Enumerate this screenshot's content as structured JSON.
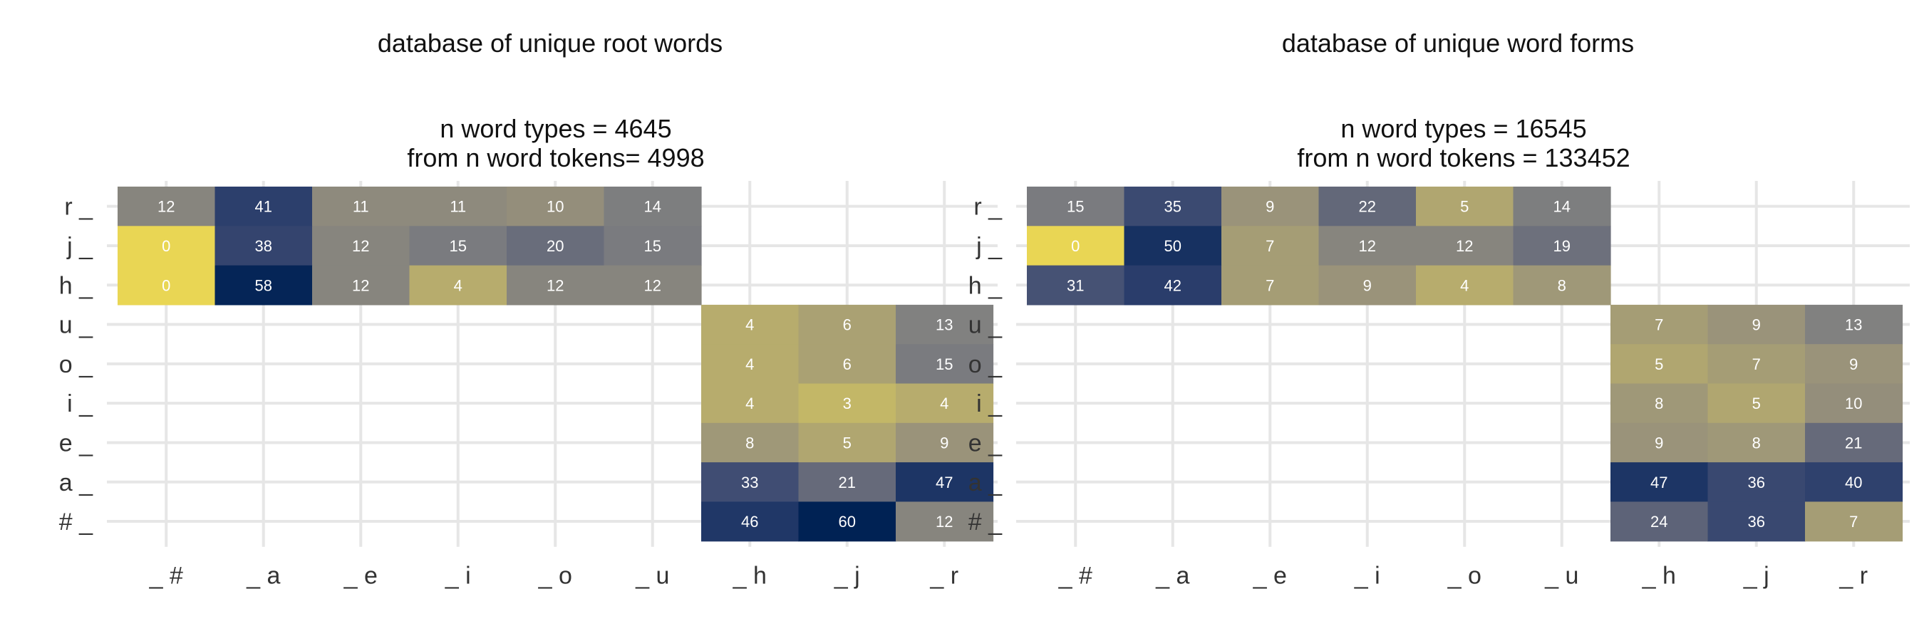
{
  "chart_data": [
    {
      "type": "heatmap",
      "title": "database of unique root words",
      "subtitle_lines": [
        "n word types = 4645",
        "from n word tokens= 4998"
      ],
      "x_categories": [
        "_#",
        "_a",
        "_e",
        "_i",
        "_o",
        "_u",
        "_h",
        "_j",
        "_r"
      ],
      "y_categories": [
        "r_",
        "j_",
        "h_",
        "u_",
        "o_",
        "i_",
        "e_",
        "a_",
        "#_"
      ],
      "cells": [
        {
          "y": "r_",
          "x": "_#",
          "value": 12
        },
        {
          "y": "r_",
          "x": "_a",
          "value": 41
        },
        {
          "y": "r_",
          "x": "_e",
          "value": 11
        },
        {
          "y": "r_",
          "x": "_i",
          "value": 11
        },
        {
          "y": "r_",
          "x": "_o",
          "value": 10
        },
        {
          "y": "r_",
          "x": "_u",
          "value": 14
        },
        {
          "y": "j_",
          "x": "_#",
          "value": 0
        },
        {
          "y": "j_",
          "x": "_a",
          "value": 38
        },
        {
          "y": "j_",
          "x": "_e",
          "value": 12
        },
        {
          "y": "j_",
          "x": "_i",
          "value": 15
        },
        {
          "y": "j_",
          "x": "_o",
          "value": 20
        },
        {
          "y": "j_",
          "x": "_u",
          "value": 15
        },
        {
          "y": "h_",
          "x": "_#",
          "value": 0
        },
        {
          "y": "h_",
          "x": "_a",
          "value": 58
        },
        {
          "y": "h_",
          "x": "_e",
          "value": 12
        },
        {
          "y": "h_",
          "x": "_i",
          "value": 4
        },
        {
          "y": "h_",
          "x": "_o",
          "value": 12
        },
        {
          "y": "h_",
          "x": "_u",
          "value": 12
        },
        {
          "y": "u_",
          "x": "_h",
          "value": 4
        },
        {
          "y": "u_",
          "x": "_j",
          "value": 6
        },
        {
          "y": "u_",
          "x": "_r",
          "value": 13
        },
        {
          "y": "o_",
          "x": "_h",
          "value": 4
        },
        {
          "y": "o_",
          "x": "_j",
          "value": 6
        },
        {
          "y": "o_",
          "x": "_r",
          "value": 15
        },
        {
          "y": "i_",
          "x": "_h",
          "value": 4
        },
        {
          "y": "i_",
          "x": "_j",
          "value": 3
        },
        {
          "y": "i_",
          "x": "_r",
          "value": 4
        },
        {
          "y": "e_",
          "x": "_h",
          "value": 8
        },
        {
          "y": "e_",
          "x": "_j",
          "value": 5
        },
        {
          "y": "e_",
          "x": "_r",
          "value": 9
        },
        {
          "y": "a_",
          "x": "_h",
          "value": 33
        },
        {
          "y": "a_",
          "x": "_j",
          "value": 21
        },
        {
          "y": "a_",
          "x": "_r",
          "value": 47
        },
        {
          "y": "#_",
          "x": "_h",
          "value": 46
        },
        {
          "y": "#_",
          "x": "_j",
          "value": 60
        },
        {
          "y": "#_",
          "x": "_r",
          "value": 12
        }
      ],
      "color_scale": "cividis (low = yellow, high = dark navy)",
      "grid": true,
      "legend": "none"
    },
    {
      "type": "heatmap",
      "title": "database of unique word forms",
      "subtitle_lines": [
        "n word types = 16545",
        "from n word tokens = 133452"
      ],
      "x_categories": [
        "_#",
        "_a",
        "_e",
        "_i",
        "_o",
        "_u",
        "_h",
        "_j",
        "_r"
      ],
      "y_categories": [
        "r_",
        "j_",
        "h_",
        "u_",
        "o_",
        "i_",
        "e_",
        "a_",
        "#_"
      ],
      "cells": [
        {
          "y": "r_",
          "x": "_#",
          "value": 15
        },
        {
          "y": "r_",
          "x": "_a",
          "value": 35
        },
        {
          "y": "r_",
          "x": "_e",
          "value": 9
        },
        {
          "y": "r_",
          "x": "_i",
          "value": 22
        },
        {
          "y": "r_",
          "x": "_o",
          "value": 5
        },
        {
          "y": "r_",
          "x": "_u",
          "value": 14
        },
        {
          "y": "j_",
          "x": "_#",
          "value": 0
        },
        {
          "y": "j_",
          "x": "_a",
          "value": 50
        },
        {
          "y": "j_",
          "x": "_e",
          "value": 7
        },
        {
          "y": "j_",
          "x": "_i",
          "value": 12
        },
        {
          "y": "j_",
          "x": "_o",
          "value": 12
        },
        {
          "y": "j_",
          "x": "_u",
          "value": 19
        },
        {
          "y": "h_",
          "x": "_#",
          "value": 31
        },
        {
          "y": "h_",
          "x": "_a",
          "value": 42
        },
        {
          "y": "h_",
          "x": "_e",
          "value": 7
        },
        {
          "y": "h_",
          "x": "_i",
          "value": 9
        },
        {
          "y": "h_",
          "x": "_o",
          "value": 4
        },
        {
          "y": "h_",
          "x": "_u",
          "value": 8
        },
        {
          "y": "u_",
          "x": "_h",
          "value": 7
        },
        {
          "y": "u_",
          "x": "_j",
          "value": 9
        },
        {
          "y": "u_",
          "x": "_r",
          "value": 13
        },
        {
          "y": "o_",
          "x": "_h",
          "value": 5
        },
        {
          "y": "o_",
          "x": "_j",
          "value": 7
        },
        {
          "y": "o_",
          "x": "_r",
          "value": 9
        },
        {
          "y": "i_",
          "x": "_h",
          "value": 8
        },
        {
          "y": "i_",
          "x": "_j",
          "value": 5
        },
        {
          "y": "i_",
          "x": "_r",
          "value": 10
        },
        {
          "y": "e_",
          "x": "_h",
          "value": 9
        },
        {
          "y": "e_",
          "x": "_j",
          "value": 8
        },
        {
          "y": "e_",
          "x": "_r",
          "value": 21
        },
        {
          "y": "a_",
          "x": "_h",
          "value": 47
        },
        {
          "y": "a_",
          "x": "_j",
          "value": 36
        },
        {
          "y": "a_",
          "x": "_r",
          "value": 40
        },
        {
          "y": "#_",
          "x": "_h",
          "value": 24
        },
        {
          "y": "#_",
          "x": "_j",
          "value": 36
        },
        {
          "y": "#_",
          "x": "_r",
          "value": 7
        }
      ],
      "color_scale": "cividis (low = yellow, high = dark navy)",
      "grid": true,
      "legend": "none"
    }
  ]
}
